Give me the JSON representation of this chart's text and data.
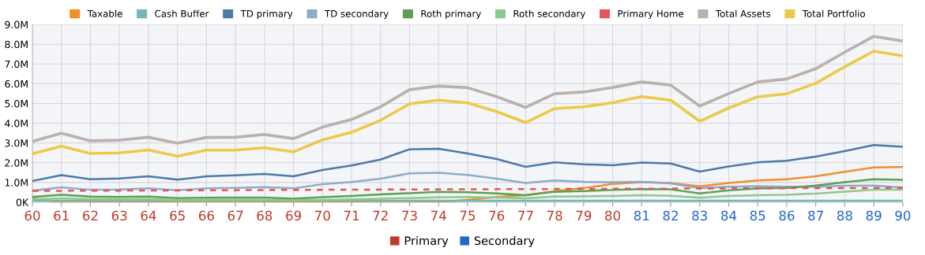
{
  "chart_data": {
    "type": "line",
    "categories": [
      "60",
      "61",
      "62",
      "63",
      "64",
      "65",
      "66",
      "67",
      "68",
      "69",
      "70",
      "71",
      "72",
      "73",
      "74",
      "75",
      "76",
      "77",
      "78",
      "79",
      "80",
      "81",
      "82",
      "83",
      "84",
      "85",
      "86",
      "87",
      "88",
      "89",
      "90"
    ],
    "series": [
      {
        "name": "Taxable",
        "color": "#f28e2b",
        "values": [
          0.2,
          0,
          0,
          0,
          0,
          0,
          0,
          0,
          0,
          0,
          0,
          0,
          0,
          0,
          0,
          0.12,
          0.27,
          0.36,
          0.56,
          0.72,
          0.92,
          1.01,
          0.97,
          0.8,
          0.97,
          1.1,
          1.16,
          1.31,
          1.54,
          1.76,
          1.78
        ]
      },
      {
        "name": "Cash Buffer",
        "color": "#76b7b2",
        "values": [
          0.08,
          0.08,
          0.08,
          0.08,
          0.08,
          0.08,
          0.08,
          0.08,
          0.08,
          0.08,
          0.08,
          0.08,
          0.08,
          0.08,
          0.08,
          0.08,
          0.08,
          0.08,
          0.08,
          0.08,
          0.08,
          0.08,
          0.08,
          0.08,
          0.08,
          0.08,
          0.08,
          0.08,
          0.08,
          0.08,
          0.08
        ]
      },
      {
        "name": "TD primary",
        "color": "#4e79a7",
        "values": [
          1.07,
          1.37,
          1.16,
          1.2,
          1.31,
          1.14,
          1.31,
          1.36,
          1.43,
          1.31,
          1.63,
          1.86,
          2.16,
          2.68,
          2.71,
          2.47,
          2.19,
          1.79,
          2.02,
          1.92,
          1.87,
          2.01,
          1.96,
          1.55,
          1.81,
          2.02,
          2.1,
          2.31,
          2.59,
          2.9,
          2.81
        ]
      },
      {
        "name": "TD secondary",
        "color": "#8fabc9",
        "values": [
          0.58,
          0.75,
          0.63,
          0.64,
          0.7,
          0.61,
          0.7,
          0.72,
          0.76,
          0.7,
          0.91,
          1.02,
          1.19,
          1.46,
          1.49,
          1.38,
          1.19,
          0.97,
          1.1,
          1.03,
          1.01,
          1.03,
          0.95,
          0.71,
          0.78,
          0.81,
          0.78,
          0.78,
          0.83,
          0.84,
          0.74
        ]
      },
      {
        "name": "Roth primary",
        "color": "#59a14f",
        "values": [
          0.27,
          0.38,
          0.29,
          0.27,
          0.29,
          0.21,
          0.23,
          0.24,
          0.24,
          0.18,
          0.26,
          0.32,
          0.4,
          0.46,
          0.53,
          0.51,
          0.45,
          0.36,
          0.53,
          0.57,
          0.62,
          0.66,
          0.65,
          0.45,
          0.6,
          0.69,
          0.72,
          0.84,
          1.01,
          1.16,
          1.13
        ]
      },
      {
        "name": "Roth secondary",
        "color": "#8cc98a",
        "values": [
          0.15,
          0.2,
          0.16,
          0.15,
          0.16,
          0.12,
          0.13,
          0.13,
          0.13,
          0.1,
          0.12,
          0.15,
          0.18,
          0.21,
          0.25,
          0.27,
          0.24,
          0.2,
          0.29,
          0.3,
          0.32,
          0.36,
          0.33,
          0.23,
          0.32,
          0.36,
          0.38,
          0.44,
          0.54,
          0.63,
          0.63
        ]
      },
      {
        "name": "Primary Home",
        "color": "#e15759",
        "line_style": "dashed",
        "values": [
          0.58,
          0.58,
          0.59,
          0.59,
          0.6,
          0.6,
          0.61,
          0.61,
          0.62,
          0.62,
          0.63,
          0.63,
          0.64,
          0.64,
          0.65,
          0.65,
          0.66,
          0.66,
          0.67,
          0.67,
          0.68,
          0.68,
          0.69,
          0.69,
          0.7,
          0.7,
          0.71,
          0.71,
          0.71,
          0.72,
          0.72
        ]
      },
      {
        "name": "Total Assets",
        "color": "#bab0ac",
        "values": [
          3.08,
          3.49,
          3.11,
          3.14,
          3.29,
          2.99,
          3.28,
          3.29,
          3.43,
          3.22,
          3.8,
          4.19,
          4.83,
          5.7,
          5.88,
          5.8,
          5.35,
          4.8,
          5.49,
          5.58,
          5.81,
          6.09,
          5.93,
          4.87,
          5.5,
          6.09,
          6.24,
          6.76,
          7.6,
          8.4,
          8.16
        ]
      },
      {
        "name": "Total Portfolio",
        "color": "#edc948",
        "values": [
          2.45,
          2.84,
          2.47,
          2.5,
          2.65,
          2.33,
          2.64,
          2.64,
          2.76,
          2.55,
          3.16,
          3.54,
          4.15,
          4.98,
          5.17,
          5.03,
          4.59,
          4.03,
          4.74,
          4.83,
          5.04,
          5.35,
          5.17,
          4.1,
          4.77,
          5.34,
          5.49,
          6.02,
          6.86,
          7.65,
          7.41
        ]
      }
    ],
    "ylim": [
      0,
      9
    ],
    "yticks": [
      {
        "value": 0,
        "label": "0K"
      },
      {
        "value": 1,
        "label": "1.0M"
      },
      {
        "value": 2,
        "label": "2.0M"
      },
      {
        "value": 3,
        "label": "3.0M"
      },
      {
        "value": 4,
        "label": "4.0M"
      },
      {
        "value": 5,
        "label": "5.0M"
      },
      {
        "value": 6,
        "label": "6.0M"
      },
      {
        "value": 7,
        "label": "7.0M"
      },
      {
        "value": 8,
        "label": "8.0M"
      },
      {
        "value": 9,
        "label": "9.0M"
      }
    ],
    "grid": true,
    "legend": "top",
    "marker": "none",
    "line_style": "solid",
    "annotations": [
      "Primary",
      "Secondary"
    ]
  }
}
